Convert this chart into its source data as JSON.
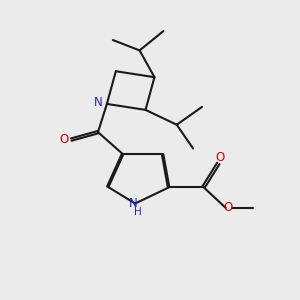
{
  "bg_color": "#ebebeb",
  "bond_color": "#1a1a1a",
  "N_color": "#2222cc",
  "O_color": "#cc0000",
  "NH_color": "#2222cc",
  "bond_width": 1.5,
  "fig_w": 3.0,
  "fig_h": 3.0,
  "dpi": 100,
  "xlim": [
    0,
    10
  ],
  "ylim": [
    0,
    10
  ]
}
